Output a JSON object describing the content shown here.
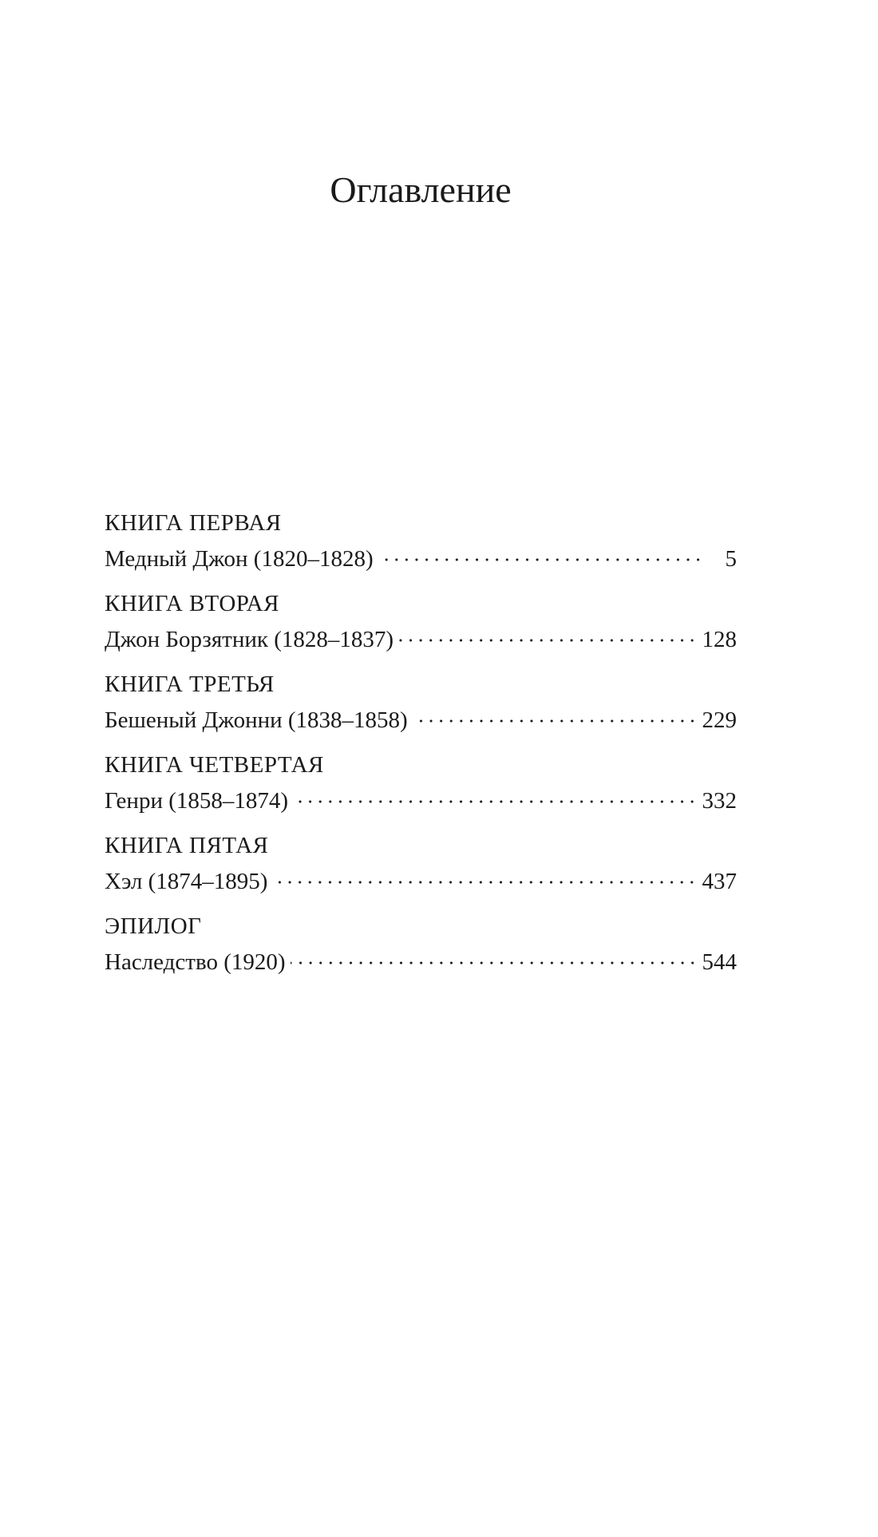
{
  "title": "Оглавление",
  "sections": [
    {
      "heading": "КНИГА ПЕРВАЯ",
      "entry": "Медный Джон (1820–1828)",
      "page": "5"
    },
    {
      "heading": "КНИГА ВТОРАЯ",
      "entry": "Джон Борзятник (1828–1837)",
      "page": "128"
    },
    {
      "heading": "КНИГА ТРЕТЬЯ",
      "entry": "Бешеный Джонни (1838–1858)",
      "page": "229"
    },
    {
      "heading": "КНИГА ЧЕТВЕРТАЯ",
      "entry": "Генри (1858–1874)",
      "page": "332"
    },
    {
      "heading": "КНИГА ПЯТАЯ",
      "entry": "Хэл (1874–1895)",
      "page": "437"
    },
    {
      "heading": "ЭПИЛОГ",
      "entry": "Наследство (1920)",
      "page": "544"
    }
  ]
}
